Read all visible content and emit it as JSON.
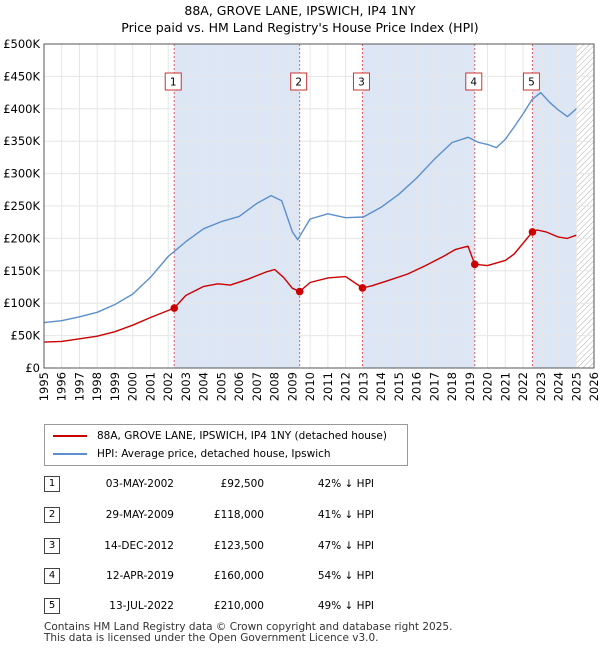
{
  "chart_data": {
    "type": "line",
    "title": "88A, GROVE LANE, IPSWICH, IP4 1NY",
    "subtitle": "Price paid vs. HM Land Registry's House Price Index (HPI)",
    "x_ticks": [
      "1995",
      "1996",
      "1997",
      "1998",
      "1999",
      "2000",
      "2001",
      "2002",
      "2003",
      "2004",
      "2005",
      "2006",
      "2007",
      "2008",
      "2009",
      "2010",
      "2011",
      "2012",
      "2013",
      "2014",
      "2015",
      "2016",
      "2017",
      "2018",
      "2019",
      "2020",
      "2021",
      "2022",
      "2023",
      "2024",
      "2025",
      "2026"
    ],
    "y_ticks": [
      "£0",
      "£50K",
      "£100K",
      "£150K",
      "£200K",
      "£250K",
      "£300K",
      "£350K",
      "£400K",
      "£450K",
      "£500K"
    ],
    "xlim": [
      1995,
      2026
    ],
    "ylim": [
      0,
      500000
    ],
    "colors": {
      "price": "#cc0000",
      "hpi": "#5b8fcc",
      "band": "#dce6f5",
      "marker_line": "#e06060",
      "hatch": "#b0b0b0"
    },
    "series": [
      {
        "name": "88A, GROVE LANE, IPSWICH, IP4 1NY (detached house)",
        "color": "#cc0000",
        "x": [
          1995.0,
          1996.0,
          1997.0,
          1998.0,
          1999.0,
          2000.0,
          2001.0,
          2002.34,
          2003.0,
          2004.0,
          2004.8,
          2005.5,
          2006.5,
          2007.5,
          2008.0,
          2008.5,
          2009.0,
          2009.41,
          2010.0,
          2011.0,
          2012.0,
          2012.95,
          2013.5,
          2014.5,
          2015.5,
          2016.5,
          2017.5,
          2018.2,
          2018.9,
          2019.28,
          2020.0,
          2021.0,
          2021.5,
          2022.53,
          2022.8,
          2023.3,
          2024.0,
          2024.5,
          2025.0
        ],
        "y": [
          40000,
          41000,
          45000,
          49000,
          56000,
          66000,
          78000,
          92500,
          112000,
          126000,
          130000,
          128000,
          137000,
          148000,
          152000,
          140000,
          123000,
          118000,
          132000,
          139000,
          141000,
          123500,
          127000,
          136000,
          145000,
          158000,
          172000,
          183000,
          188000,
          160000,
          158000,
          166000,
          176000,
          210000,
          213000,
          210000,
          202000,
          200000,
          205000
        ]
      },
      {
        "name": "HPI: Average price, detached house, Ipswich",
        "color": "#5b8fcc",
        "x": [
          1995.0,
          1996.0,
          1997.0,
          1998.0,
          1999.0,
          2000.0,
          2001.0,
          2002.0,
          2003.0,
          2004.0,
          2005.0,
          2006.0,
          2007.0,
          2007.8,
          2008.4,
          2009.0,
          2009.3,
          2010.0,
          2011.0,
          2012.0,
          2013.0,
          2014.0,
          2015.0,
          2016.0,
          2017.0,
          2018.0,
          2018.9,
          2019.5,
          2020.0,
          2020.5,
          2021.0,
          2021.5,
          2022.0,
          2022.5,
          2023.0,
          2023.5,
          2024.0,
          2024.5,
          2025.0
        ],
        "y": [
          70000,
          73000,
          79000,
          86000,
          98000,
          114000,
          140000,
          172000,
          195000,
          215000,
          226000,
          234000,
          254000,
          266000,
          258000,
          210000,
          198000,
          230000,
          238000,
          232000,
          233000,
          248000,
          268000,
          293000,
          322000,
          348000,
          356000,
          348000,
          345000,
          340000,
          353000,
          372000,
          392000,
          414000,
          425000,
          410000,
          398000,
          388000,
          400000
        ]
      }
    ],
    "sale_markers": [
      {
        "label": "1",
        "x": 2002.34,
        "y": 92500
      },
      {
        "label": "2",
        "x": 2009.41,
        "y": 118000
      },
      {
        "label": "3",
        "x": 2012.95,
        "y": 123500
      },
      {
        "label": "4",
        "x": 2019.28,
        "y": 160000
      },
      {
        "label": "5",
        "x": 2022.53,
        "y": 210000
      }
    ]
  },
  "legend": {
    "price_label": "88A, GROVE LANE, IPSWICH, IP4 1NY (detached house)",
    "hpi_label": "HPI: Average price, detached house, Ipswich"
  },
  "table": [
    {
      "num": "1",
      "date": "03-MAY-2002",
      "price": "£92,500",
      "hpi": "42% ↓ HPI"
    },
    {
      "num": "2",
      "date": "29-MAY-2009",
      "price": "£118,000",
      "hpi": "41% ↓ HPI"
    },
    {
      "num": "3",
      "date": "14-DEC-2012",
      "price": "£123,500",
      "hpi": "47% ↓ HPI"
    },
    {
      "num": "4",
      "date": "12-APR-2019",
      "price": "£160,000",
      "hpi": "54% ↓ HPI"
    },
    {
      "num": "5",
      "date": "13-JUL-2022",
      "price": "£210,000",
      "hpi": "49% ↓ HPI"
    }
  ],
  "footer": {
    "line1": "Contains HM Land Registry data © Crown copyright and database right 2025.",
    "line2": "This data is licensed under the Open Government Licence v3.0."
  }
}
